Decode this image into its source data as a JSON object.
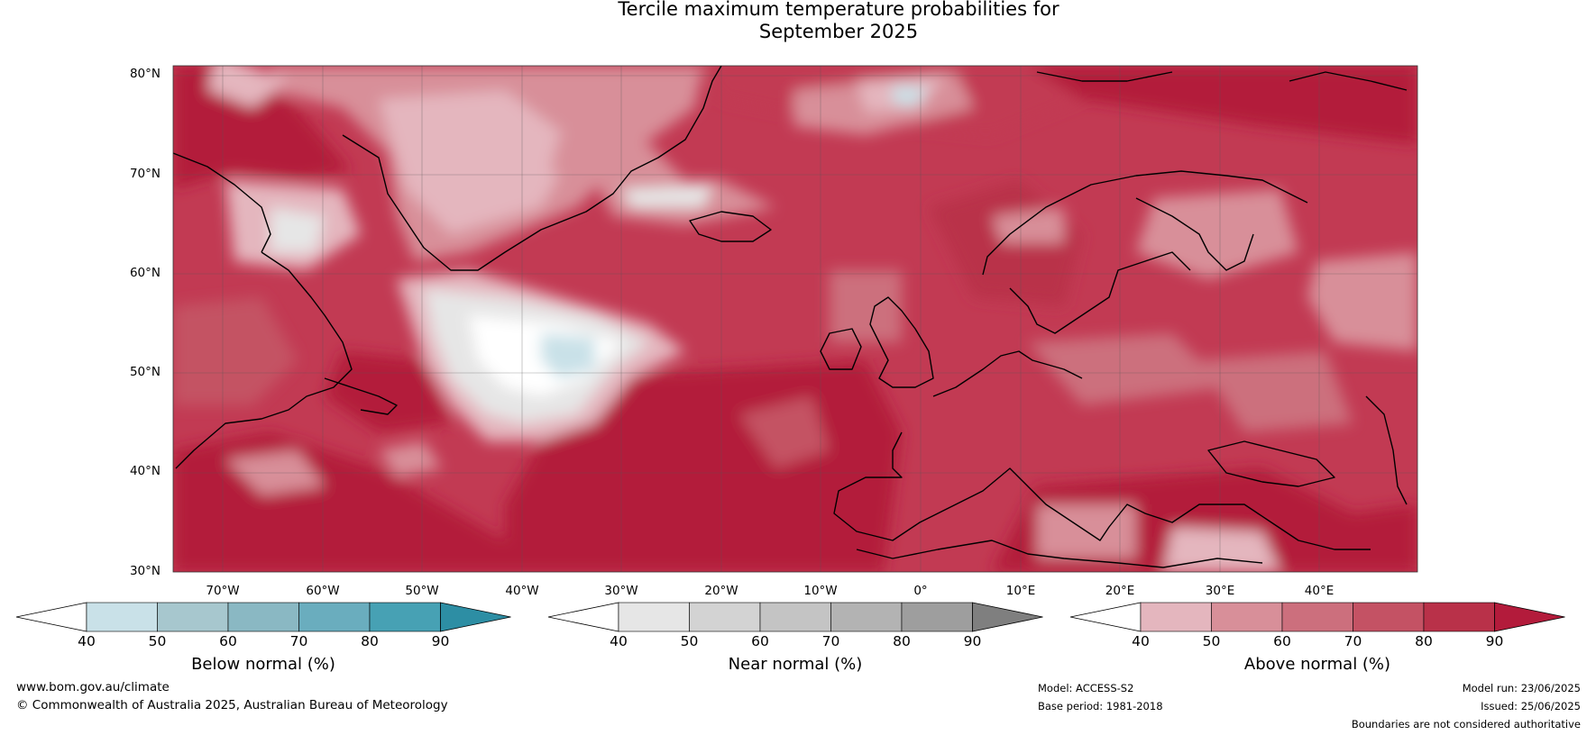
{
  "title": {
    "line1": "Tercile maximum temperature probabilities for",
    "line2": "September 2025"
  },
  "map": {
    "lat_labels": [
      "80°N",
      "70°N",
      "60°N",
      "50°N",
      "40°N",
      "30°N"
    ],
    "lon_labels": [
      "70°W",
      "60°W",
      "50°W",
      "40°W",
      "30°W",
      "20°W",
      "10°W",
      "0°",
      "10°E",
      "20°E",
      "30°E",
      "40°E"
    ],
    "lat_range": [
      30,
      81
    ],
    "lon_range": [
      -75,
      50
    ]
  },
  "colorbars": [
    {
      "id": "below",
      "title": "Below normal (%)",
      "ticks": [
        "40",
        "50",
        "60",
        "70",
        "80",
        "90"
      ],
      "colors": [
        "#ffffff",
        "#c9e1e8",
        "#a7c7ce",
        "#8ab8c3",
        "#6aadbe",
        "#47a1b4",
        "#2d8ea4"
      ]
    },
    {
      "id": "near",
      "title": "Near normal (%)",
      "ticks": [
        "40",
        "50",
        "60",
        "70",
        "80",
        "90"
      ],
      "colors": [
        "#ffffff",
        "#e6e6e6",
        "#d3d3d3",
        "#c4c4c4",
        "#b3b3b3",
        "#9e9e9e",
        "#7f7f7f"
      ]
    },
    {
      "id": "above",
      "title": "Above normal (%)",
      "ticks": [
        "40",
        "50",
        "60",
        "70",
        "80",
        "90"
      ],
      "colors": [
        "#ffffff",
        "#e4b6be",
        "#d88f99",
        "#cc6f7d",
        "#c45264",
        "#b93149",
        "#b31b3b"
      ]
    }
  ],
  "footer": {
    "website": "www.bom.gov.au/climate",
    "copyright": "© Commonwealth of Australia 2025, Australian Bureau of Meteorology",
    "model": "Model: ACCESS-S2",
    "base_period": "Base period: 1981-2018",
    "model_run": "Model run: 23/06/2025",
    "issued": "Issued: 25/06/2025",
    "disclaimer": "Boundaries are not considered authoritative"
  }
}
